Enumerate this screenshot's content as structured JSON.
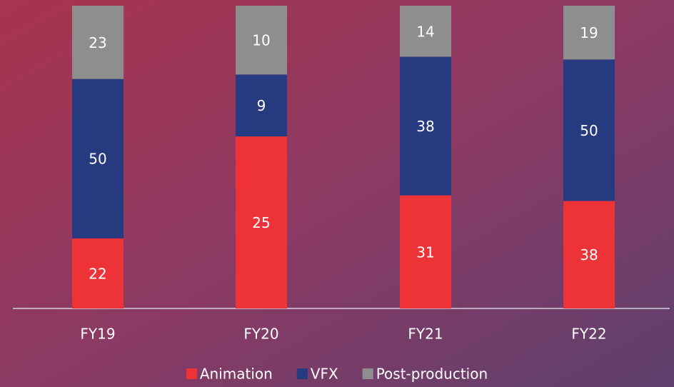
{
  "chart_data": {
    "type": "bar",
    "stacked": "percent",
    "categories": [
      "FY19",
      "FY20",
      "FY21",
      "FY22"
    ],
    "series": [
      {
        "name": "Animation",
        "color": "#ee3338",
        "values": [
          22,
          25,
          31,
          38
        ]
      },
      {
        "name": "VFX",
        "color": "#253a7f",
        "values": [
          50,
          9,
          38,
          50
        ]
      },
      {
        "name": "Post-production",
        "color": "#8e8e8e",
        "values": [
          23,
          10,
          14,
          19
        ]
      }
    ],
    "legend": "bottom"
  }
}
